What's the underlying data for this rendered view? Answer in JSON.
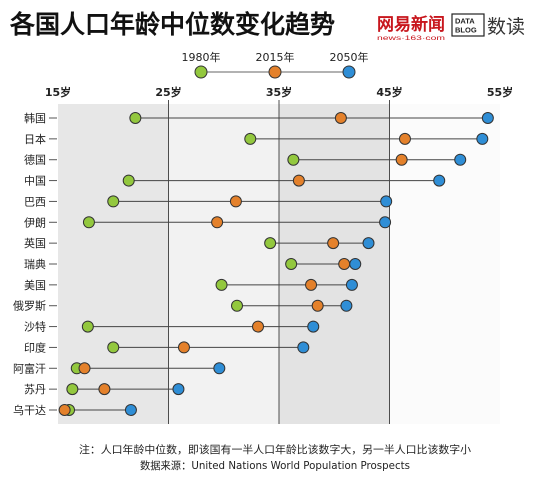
{
  "header": {
    "logo": {
      "name": "网易新闻",
      "url": "news·163·com",
      "color": "#c8161d"
    },
    "data_blog": {
      "badge": [
        "DATA",
        "BLOG"
      ],
      "name": "数读"
    }
  },
  "chart_data": {
    "type": "scatter",
    "title": "各国人口年龄中位数变化趋势",
    "xlim": [
      15,
      55
    ],
    "x_tick_values": [
      15,
      25,
      35,
      45,
      55
    ],
    "x_tick_labels": [
      "15岁",
      "25岁",
      "35岁",
      "45岁",
      "55岁"
    ],
    "categories": [
      "韩国",
      "日本",
      "德国",
      "中国",
      "巴西",
      "伊朗",
      "英国",
      "瑞典",
      "美国",
      "俄罗斯",
      "沙特",
      "印度",
      "阿富汗",
      "苏丹",
      "乌干达"
    ],
    "series": [
      {
        "name": "1980年",
        "color": "#93c83e",
        "values": [
          22.0,
          32.4,
          36.3,
          21.4,
          20.0,
          17.8,
          34.2,
          36.1,
          29.8,
          31.2,
          17.7,
          20.0,
          16.7,
          16.3,
          16.0
        ]
      },
      {
        "name": "2015年",
        "color": "#e4812b",
        "values": [
          40.6,
          46.4,
          46.1,
          36.8,
          31.1,
          29.4,
          39.9,
          40.9,
          37.9,
          38.5,
          33.1,
          26.4,
          17.4,
          19.2,
          15.6
        ]
      },
      {
        "name": "2050年",
        "color": "#2f8ed6",
        "values": [
          53.9,
          53.4,
          51.4,
          49.5,
          44.7,
          44.6,
          43.1,
          41.9,
          41.6,
          41.1,
          38.1,
          37.2,
          29.6,
          25.9,
          21.6
        ]
      }
    ],
    "legend_position": "top",
    "grid": true
  },
  "notes": {
    "note": "注：人口年龄中位数，即该国有一半人口年龄比该数字大，另一半人口比该数字小",
    "source": "数据来源：United Nations World Population Prospects"
  }
}
